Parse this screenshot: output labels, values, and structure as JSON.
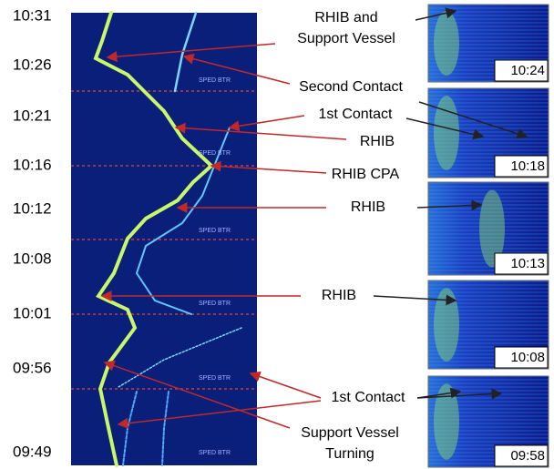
{
  "time_labels": [
    "10:31",
    "10:26",
    "10:21",
    "10:16",
    "10:12",
    "10:08",
    "10:01",
    "09:56",
    "09:49"
  ],
  "annotations": [
    {
      "lines": [
        "RHIB and",
        "Support Vessel"
      ]
    },
    {
      "lines": [
        "Second Contact"
      ]
    },
    {
      "lines": [
        "1st Contact"
      ]
    },
    {
      "lines": [
        "RHIB"
      ]
    },
    {
      "lines": [
        "RHIB CPA"
      ]
    },
    {
      "lines": [
        "RHIB"
      ]
    },
    {
      "lines": [
        "RHIB"
      ]
    },
    {
      "lines": [
        "1st Contact"
      ]
    },
    {
      "lines": [
        "Support Vessel",
        "Turning"
      ]
    }
  ],
  "panel_times": [
    "10:24",
    "10:18",
    "10:13",
    "10:08",
    "09:58"
  ],
  "overlay_labels": [
    "SPED BTR",
    "SPED BTR",
    "SPED BTR",
    "SPED BTR",
    "SPED BTR",
    "SPED BTR"
  ]
}
